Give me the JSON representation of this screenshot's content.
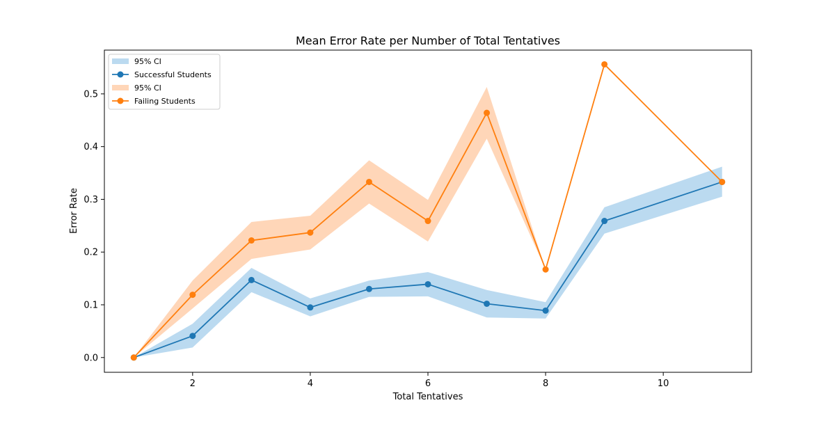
{
  "chart_data": {
    "type": "line",
    "title": "Mean Error Rate per Number of Total Tentatives",
    "xlabel": "Total Tentatives",
    "ylabel": "Error Rate",
    "xlim": [
      0.5,
      11.5
    ],
    "ylim": [
      -0.028,
      0.583
    ],
    "xticks": [
      2,
      4,
      6,
      8,
      10
    ],
    "yticks": [
      0.0,
      0.1,
      0.2,
      0.3,
      0.4,
      0.5
    ],
    "grid": false,
    "legend_position": "top-left",
    "x": [
      1,
      2,
      3,
      4,
      5,
      6,
      7,
      8,
      9,
      11
    ],
    "series": [
      {
        "name": "Successful Students",
        "ci_label": "95% CI",
        "color": "#1f77b4",
        "ci_color": "#9ecae9",
        "values": [
          0.0,
          0.041,
          0.147,
          0.095,
          0.13,
          0.139,
          0.102,
          0.089,
          0.259,
          0.333
        ],
        "ci_lower": [
          0.0,
          0.019,
          0.124,
          0.078,
          0.115,
          0.116,
          0.076,
          0.074,
          0.235,
          0.305
        ],
        "ci_upper": [
          0.0,
          0.064,
          0.17,
          0.112,
          0.146,
          0.162,
          0.128,
          0.105,
          0.285,
          0.362
        ]
      },
      {
        "name": "Failing Students",
        "ci_label": "95% CI",
        "color": "#ff7f0e",
        "ci_color": "#ffc49a",
        "values": [
          0.0,
          0.119,
          0.222,
          0.237,
          0.333,
          0.259,
          0.464,
          0.167,
          0.556,
          0.333
        ],
        "ci_lower": [
          0.0,
          0.093,
          0.187,
          0.205,
          0.292,
          0.22,
          0.415,
          0.167,
          0.556,
          0.333
        ],
        "ci_upper": [
          0.0,
          0.146,
          0.257,
          0.269,
          0.374,
          0.299,
          0.513,
          0.167,
          0.556,
          0.333
        ]
      }
    ]
  }
}
